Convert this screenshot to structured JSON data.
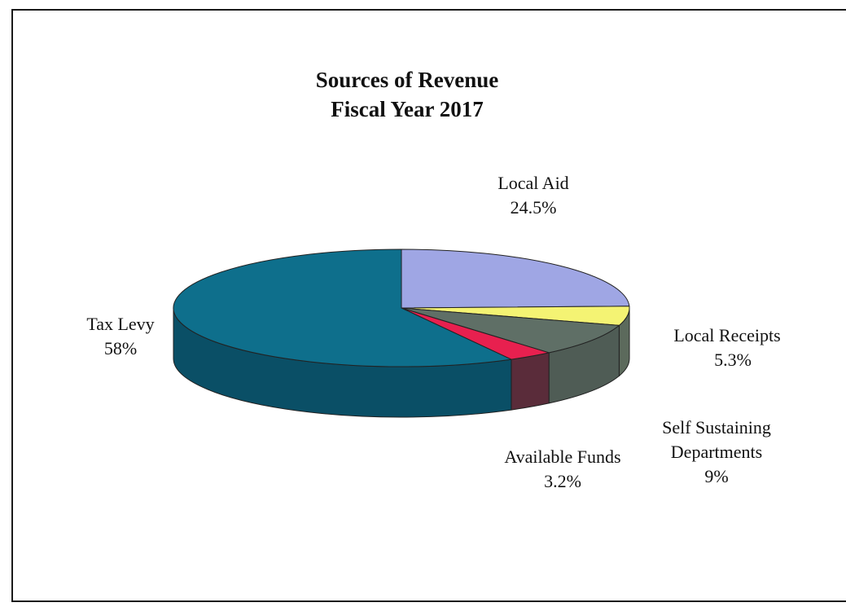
{
  "chart_data": {
    "type": "pie",
    "title": "Sources of Revenue",
    "subtitle": "Fiscal Year 2017",
    "slices": [
      {
        "name": "Local Aid",
        "value": 24.5,
        "label": "24.5%",
        "color": "#9fa6e4",
        "side_color": "#3a3e54"
      },
      {
        "name": "Local Receipts",
        "value": 5.3,
        "label": "5.3%",
        "color": "#f4f373",
        "side_color": "#5c6a5c"
      },
      {
        "name": "Self Sustaining Departments",
        "value": 9,
        "label": "9%",
        "color": "#5f6f66",
        "side_color": "#4f5c55"
      },
      {
        "name": "Available Funds",
        "value": 3.2,
        "label": "3.2%",
        "color": "#e8204f",
        "side_color": "#5a2c3a"
      },
      {
        "name": "Tax Levy",
        "value": 58,
        "label": "58%",
        "color": "#0e6f8c",
        "side_color": "#0a4f66"
      }
    ]
  },
  "labels": {
    "local_aid_name": "Local Aid",
    "local_aid_value": "24.5%",
    "local_receipts_name": "Local Receipts",
    "local_receipts_value": "5.3%",
    "self_sustaining_name_1": "Self Sustaining",
    "self_sustaining_name_2": "Departments",
    "self_sustaining_value": "9%",
    "available_funds_name": "Available Funds",
    "available_funds_value": "3.2%",
    "tax_levy_name": "Tax Levy",
    "tax_levy_value": "58%"
  }
}
